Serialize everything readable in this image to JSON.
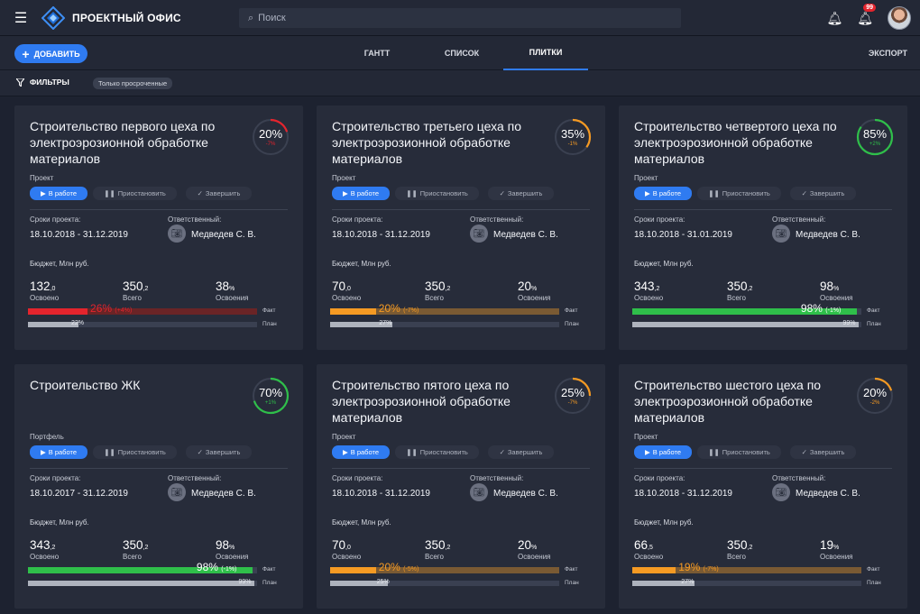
{
  "app": {
    "title": "ПРОЕКТНЫЙ ОФИС",
    "notif_count": "99"
  },
  "search": {
    "placeholder": "Поиск"
  },
  "toolbar": {
    "add_label": "ДОБАВИТЬ",
    "tabs": [
      "ГАНТТ",
      "СПИСОК",
      "ПЛИТКИ"
    ],
    "active_tab": "ПЛИТКИ",
    "export_label": "ЭКСПОРТ"
  },
  "filters": {
    "label": "ФИЛЬТРЫ",
    "chip": "Только просроченные"
  },
  "labels": {
    "status_on": "В работе",
    "status_pause": "Приостановить",
    "status_finish": "Завершить",
    "dates": "Сроки проекта:",
    "responsible": "Ответственный:",
    "budget": "Бюджет, Млн руб.",
    "spent": "Освоено",
    "total": "Всего",
    "share": "Освоения",
    "fact": "Факт",
    "plan": "План"
  },
  "colors": {
    "accent": "#2f7bf1",
    "red": "#e4242d",
    "orange": "#f59a23",
    "green": "#2fbf4a"
  },
  "cards": [
    {
      "title": "Строительство первого цеха по электроэрозионной обработке материалов",
      "progress": "20%",
      "progress_value": 20,
      "progress_delta": "-7%",
      "type": "Проект",
      "dates": "18.10.2018 - 31.12.2019",
      "responsible": "Медведев С. В.",
      "spent_int": "132",
      "spent_dec": ",0",
      "total_int": "350",
      "total_dec": ",2",
      "share_int": "38",
      "share_unit": "%",
      "fact_text": "26%",
      "fact_delta": "(+4%)",
      "fact_value": 26,
      "plan_text": "22%",
      "plan_value": 22,
      "color": "red"
    },
    {
      "title": "Строительство третьего цеха по электроэрозионной обработке материалов",
      "progress": "35%",
      "progress_value": 35,
      "progress_delta": "-1%",
      "type": "Проект",
      "dates": "18.10.2018 - 31.12.2019",
      "responsible": "Медведев С. В.",
      "spent_int": "70",
      "spent_dec": ",0",
      "total_int": "350",
      "total_dec": ",2",
      "share_int": "20",
      "share_unit": "%",
      "fact_text": "20%",
      "fact_delta": "(-7%)",
      "fact_value": 20,
      "plan_text": "27%",
      "plan_value": 27,
      "color": "orange"
    },
    {
      "title": "Строительство четвертого цеха по электроэрозионной обработке материалов",
      "progress": "85%",
      "progress_value": 85,
      "progress_delta": "+2%",
      "type": "Проект",
      "dates": "18.10.2018 - 31.01.2019",
      "responsible": "Медведев С. В.",
      "spent_int": "343",
      "spent_dec": ",2",
      "total_int": "350",
      "total_dec": ",2",
      "share_int": "98",
      "share_unit": "%",
      "fact_text": "98%",
      "fact_delta": "(-1%)",
      "fact_value": 98,
      "plan_text": "99%",
      "plan_value": 99,
      "color": "green"
    },
    {
      "title": "Строительство ЖК",
      "progress": "70%",
      "progress_value": 70,
      "progress_delta": "+1%",
      "type": "Портфель",
      "dates": "18.10.2017 - 31.12.2019",
      "responsible": "Медведев С. В.",
      "spent_int": "343",
      "spent_dec": ",2",
      "total_int": "350",
      "total_dec": ",2",
      "share_int": "98",
      "share_unit": "%",
      "fact_text": "98%",
      "fact_delta": "(-1%)",
      "fact_value": 98,
      "plan_text": "99%",
      "plan_value": 99,
      "color": "green"
    },
    {
      "title": "Строительство пятого цеха по электроэрозионной обработке материалов",
      "progress": "25%",
      "progress_value": 25,
      "progress_delta": "-7%",
      "type": "Проект",
      "dates": "18.10.2018 - 31.12.2019",
      "responsible": "Медведев С. В.",
      "spent_int": "70",
      "spent_dec": ",0",
      "total_int": "350",
      "total_dec": ",2",
      "share_int": "20",
      "share_unit": "%",
      "fact_text": "20%",
      "fact_delta": "(-5%)",
      "fact_value": 20,
      "plan_text": "25%",
      "plan_value": 25,
      "color": "orange"
    },
    {
      "title": "Строительство шестого цеха по электроэрозионной обработке материалов",
      "progress": "20%",
      "progress_value": 20,
      "progress_delta": "-2%",
      "type": "Проект",
      "dates": "18.10.2018 - 31.12.2019",
      "responsible": "Медведев С. В.",
      "spent_int": "66",
      "spent_dec": ",5",
      "total_int": "350",
      "total_dec": ",2",
      "share_int": "19",
      "share_unit": "%",
      "fact_text": "19%",
      "fact_delta": "(-7%)",
      "fact_value": 19,
      "plan_text": "27%",
      "plan_value": 27,
      "color": "orange"
    }
  ]
}
